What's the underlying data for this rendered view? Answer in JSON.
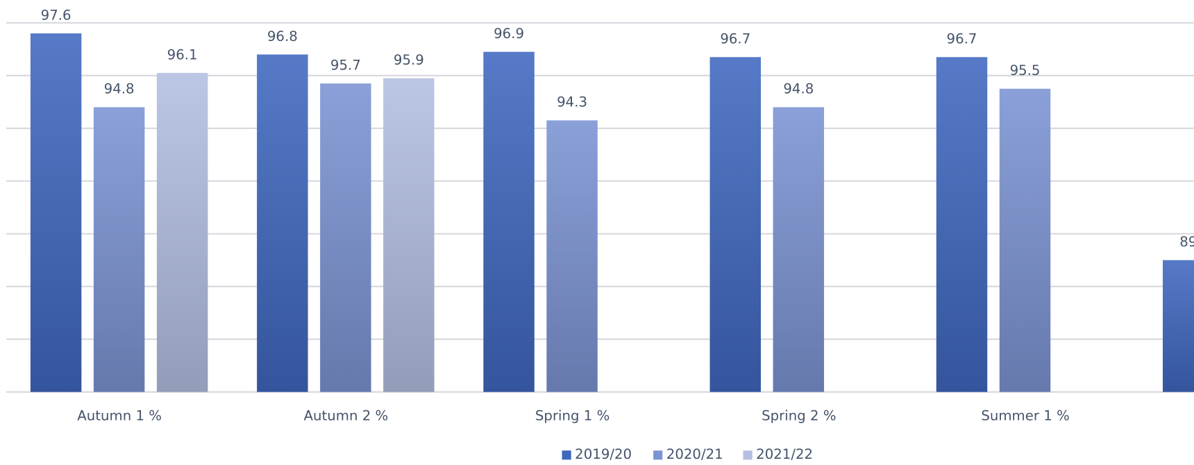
{
  "chart_data": {
    "type": "bar",
    "categories": [
      "Autumn 1 %",
      "Autumn 2 %",
      "Spring 1 %",
      "Spring 2 %",
      "Summer 1 %",
      null
    ],
    "series": [
      {
        "name": "2019/20",
        "color": "#3f68bf",
        "values": [
          97.6,
          96.8,
          96.9,
          96.7,
          96.7,
          89
        ]
      },
      {
        "name": "2020/21",
        "color": "#7b93d3",
        "values": [
          94.8,
          95.7,
          94.3,
          94.8,
          95.5,
          null
        ]
      },
      {
        "name": "2021/22",
        "color": "#b3bfe2",
        "values": [
          96.1,
          95.9,
          null,
          null,
          null,
          null
        ]
      }
    ],
    "ylim": [
      84,
      98
    ],
    "yticks": [
      84,
      86,
      88,
      90,
      92,
      94,
      96,
      98
    ],
    "grid": true,
    "legend": "bottom"
  }
}
